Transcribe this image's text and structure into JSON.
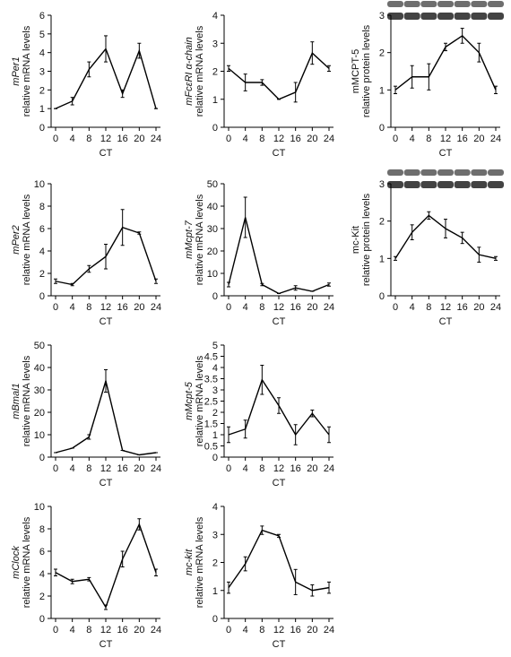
{
  "chart_data": [
    {
      "type": "line",
      "ylabel_gene": "mPer1",
      "ylabel_italic": true,
      "ylabel": "relative mRNA levels",
      "xlabel": "CT",
      "x": [
        0,
        4,
        8,
        12,
        16,
        20,
        24
      ],
      "xlim": [
        0,
        24
      ],
      "xticks": [
        0,
        4,
        8,
        12,
        16,
        20,
        24
      ],
      "values": [
        1.0,
        1.4,
        3.1,
        4.2,
        1.8,
        4.1,
        1.0
      ],
      "errors": [
        0,
        0.2,
        0.4,
        0.7,
        0.2,
        0.4,
        0
      ],
      "ylim": [
        0,
        6
      ],
      "yticks": [
        0,
        1,
        2,
        3,
        4,
        5,
        6
      ],
      "color": "#000000",
      "blot": false
    },
    {
      "type": "line",
      "ylabel_gene": "mFcεRI α-chain",
      "ylabel_italic": true,
      "ylabel": "relative mRNA levels",
      "xlabel": "CT",
      "x": [
        0,
        4,
        8,
        12,
        16,
        20,
        24
      ],
      "xlim": [
        0,
        24
      ],
      "xticks": [
        0,
        4,
        8,
        12,
        16,
        20,
        24
      ],
      "values": [
        2.1,
        1.6,
        1.6,
        1.0,
        1.25,
        2.65,
        2.1
      ],
      "errors": [
        0.1,
        0.3,
        0.1,
        0,
        0.35,
        0.4,
        0.1
      ],
      "ylim": [
        0,
        4
      ],
      "yticks": [
        0,
        1,
        2,
        3,
        4
      ],
      "color": "#000000",
      "blot": false
    },
    {
      "type": "line",
      "ylabel_gene": "mMCPT-5",
      "ylabel_italic": false,
      "ylabel": "relative protein levels",
      "xlabel": "CT",
      "x": [
        0,
        4,
        8,
        12,
        16,
        20,
        24
      ],
      "xlim": [
        0,
        24
      ],
      "xticks": [
        0,
        4,
        8,
        12,
        16,
        20,
        24
      ],
      "values": [
        1.0,
        1.35,
        1.35,
        2.15,
        2.45,
        2.0,
        1.0
      ],
      "errors": [
        0.1,
        0.3,
        0.35,
        0.1,
        0.2,
        0.25,
        0.1
      ],
      "ylim": [
        0,
        3
      ],
      "yticks": [
        0,
        1,
        2,
        3
      ],
      "color": "#000000",
      "blot": true
    },
    {
      "type": "line",
      "ylabel_gene": "mPer2",
      "ylabel_italic": true,
      "ylabel": "relative mRNA levels",
      "xlabel": "CT",
      "x": [
        0,
        4,
        8,
        12,
        16,
        20,
        24
      ],
      "xlim": [
        0,
        24
      ],
      "xticks": [
        0,
        4,
        8,
        12,
        16,
        20,
        24
      ],
      "values": [
        1.3,
        1.0,
        2.4,
        3.5,
        6.1,
        5.6,
        1.3
      ],
      "errors": [
        0.2,
        0.1,
        0.3,
        1.1,
        1.6,
        0.1,
        0.2
      ],
      "ylim": [
        0,
        10
      ],
      "yticks": [
        0,
        2,
        4,
        6,
        8,
        10
      ],
      "color": "#000000",
      "blot": false
    },
    {
      "type": "line",
      "ylabel_gene": "mMcpt-7",
      "ylabel_italic": true,
      "ylabel": "relative mRNA levels",
      "xlabel": "CT",
      "x": [
        0,
        4,
        8,
        12,
        16,
        20,
        24
      ],
      "xlim": [
        0,
        24
      ],
      "xticks": [
        0,
        4,
        8,
        12,
        16,
        20,
        24
      ],
      "values": [
        5,
        35,
        5,
        1,
        3.5,
        2,
        5
      ],
      "errors": [
        1,
        9,
        0.5,
        0,
        1,
        0,
        0.7
      ],
      "ylim": [
        0,
        50
      ],
      "yticks": [
        0,
        10,
        20,
        30,
        40,
        50
      ],
      "color": "#000000",
      "blot": false
    },
    {
      "type": "line",
      "ylabel_gene": "mc-Kit",
      "ylabel_italic": false,
      "ylabel": "relative protein levels",
      "xlabel": "CT",
      "x": [
        0,
        4,
        8,
        12,
        16,
        20,
        24
      ],
      "xlim": [
        0,
        24
      ],
      "xticks": [
        0,
        4,
        8,
        12,
        16,
        20,
        24
      ],
      "values": [
        1.0,
        1.7,
        2.15,
        1.8,
        1.55,
        1.1,
        1.0
      ],
      "errors": [
        0.05,
        0.2,
        0.1,
        0.25,
        0.15,
        0.2,
        0.05
      ],
      "ylim": [
        0,
        3
      ],
      "yticks": [
        0,
        1,
        2,
        3
      ],
      "color": "#000000",
      "blot": true
    },
    {
      "type": "line",
      "ylabel_gene": "mBmal1",
      "ylabel_italic": true,
      "ylabel": "relative mRNA levels",
      "xlabel": "CT",
      "x": [
        0,
        4,
        8,
        12,
        16,
        20,
        24
      ],
      "xlim": [
        0,
        24
      ],
      "xticks": [
        0,
        4,
        8,
        12,
        16,
        20,
        24
      ],
      "values": [
        2,
        4,
        9,
        34,
        3,
        1,
        2
      ],
      "errors": [
        0,
        0,
        1,
        5,
        0,
        0,
        0
      ],
      "ylim": [
        0,
        50
      ],
      "yticks": [
        0,
        10,
        20,
        30,
        40,
        50
      ],
      "color": "#000000",
      "blot": false
    },
    {
      "type": "line",
      "ylabel_gene": "mMcpt-5",
      "ylabel_italic": true,
      "ylabel": "relative mRNA levels",
      "xlabel": "CT",
      "x": [
        0,
        4,
        8,
        12,
        16,
        20,
        24
      ],
      "xlim": [
        0,
        24
      ],
      "xticks": [
        0,
        4,
        8,
        12,
        16,
        20,
        24
      ],
      "values": [
        1.0,
        1.25,
        3.45,
        2.3,
        1.0,
        1.95,
        1.0
      ],
      "errors": [
        0.35,
        0.4,
        0.65,
        0.35,
        0.45,
        0.15,
        0.35
      ],
      "ylim": [
        0,
        5
      ],
      "yticks": [
        0,
        0.5,
        1,
        1.5,
        2,
        2.5,
        3,
        3.5,
        4,
        4.5,
        5
      ],
      "color": "#000000",
      "blot": false
    },
    {
      "type": "line",
      "ylabel_gene": "mClock",
      "ylabel_italic": true,
      "ylabel": "relative mRNA levels",
      "xlabel": "CT",
      "x": [
        0,
        4,
        8,
        12,
        16,
        20,
        24
      ],
      "xlim": [
        0,
        24
      ],
      "xticks": [
        0,
        4,
        8,
        12,
        16,
        20,
        24
      ],
      "values": [
        4.1,
        3.3,
        3.5,
        1.0,
        5.3,
        8.4,
        4.1
      ],
      "errors": [
        0.3,
        0.2,
        0.15,
        0.2,
        0.7,
        0.5,
        0.3
      ],
      "ylim": [
        0,
        10
      ],
      "yticks": [
        0,
        2,
        4,
        6,
        8,
        10
      ],
      "color": "#000000",
      "blot": false
    },
    {
      "type": "line",
      "ylabel_gene": "mc-kit",
      "ylabel_italic": true,
      "ylabel": "relative mRNA levels",
      "xlabel": "CT",
      "x": [
        0,
        4,
        8,
        12,
        16,
        20,
        24
      ],
      "xlim": [
        0,
        24
      ],
      "xticks": [
        0,
        4,
        8,
        12,
        16,
        20,
        24
      ],
      "values": [
        1.1,
        1.95,
        3.15,
        2.95,
        1.3,
        1.0,
        1.1
      ],
      "errors": [
        0.2,
        0.25,
        0.15,
        0.05,
        0.45,
        0.2,
        0.2
      ],
      "ylim": [
        0,
        4
      ],
      "yticks": [
        0,
        1,
        2,
        3,
        4
      ],
      "color": "#000000",
      "blot": false
    }
  ]
}
